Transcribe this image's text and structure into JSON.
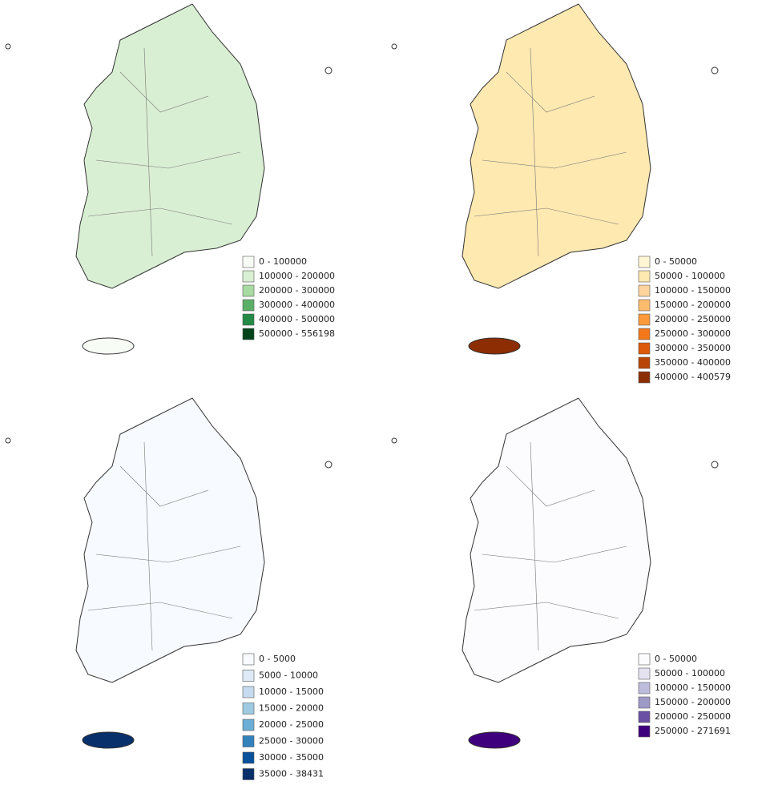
{
  "maps": [
    {
      "legend": [
        {
          "label": "0 - 100000",
          "color": "#f7fcf5"
        },
        {
          "label": "100000 - 200000",
          "color": "#d9efd3"
        },
        {
          "label": "200000 - 300000",
          "color": "#a8dba0"
        },
        {
          "label": "300000 - 400000",
          "color": "#5bb068"
        },
        {
          "label": "400000 - 500000",
          "color": "#238b45"
        },
        {
          "label": "500000 - 556198",
          "color": "#00441b"
        }
      ]
    },
    {
      "legend": [
        {
          "label": "0 - 50000",
          "color": "#fff7d4"
        },
        {
          "label": "50000 - 100000",
          "color": "#fee9b0"
        },
        {
          "label": "100000 - 150000",
          "color": "#fdd49e"
        },
        {
          "label": "150000 - 200000",
          "color": "#fdbb6e"
        },
        {
          "label": "200000 - 250000",
          "color": "#fb9a3a"
        },
        {
          "label": "250000 - 300000",
          "color": "#f3781a"
        },
        {
          "label": "300000 - 350000",
          "color": "#dd5a0a"
        },
        {
          "label": "350000 - 400000",
          "color": "#b84507"
        },
        {
          "label": "400000 - 400579",
          "color": "#8c2d04"
        }
      ]
    },
    {
      "legend": [
        {
          "label": "0 - 5000",
          "color": "#f7fbff"
        },
        {
          "label": "5000 - 10000",
          "color": "#deebf7"
        },
        {
          "label": "10000 - 15000",
          "color": "#c6dbef"
        },
        {
          "label": "15000 - 20000",
          "color": "#9ecae1"
        },
        {
          "label": "20000 - 25000",
          "color": "#6baed6"
        },
        {
          "label": "25000 - 30000",
          "color": "#3182bd"
        },
        {
          "label": "30000 - 35000",
          "color": "#08519c"
        },
        {
          "label": "35000 - 38431",
          "color": "#08306b"
        }
      ]
    },
    {
      "legend": [
        {
          "label": "0 - 50000",
          "color": "#fcfbfd"
        },
        {
          "label": "50000 - 100000",
          "color": "#e5e3f1"
        },
        {
          "label": "100000 - 150000",
          "color": "#bcbddc"
        },
        {
          "label": "150000 - 200000",
          "color": "#9e9ac8"
        },
        {
          "label": "200000 - 250000",
          "color": "#6a51a3"
        },
        {
          "label": "250000 - 271691",
          "color": "#3f007d"
        }
      ]
    }
  ]
}
